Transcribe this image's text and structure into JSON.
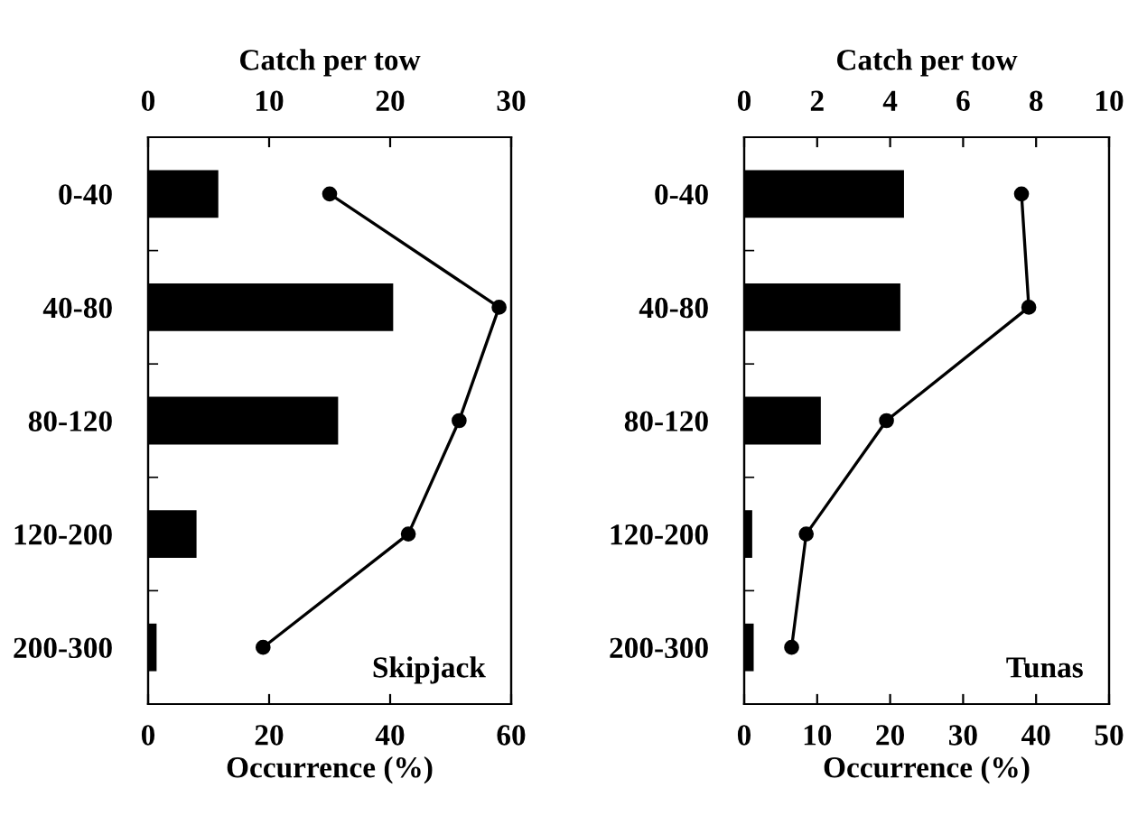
{
  "chart_data": [
    {
      "type": "bar",
      "orientation": "horizontal",
      "categories": [
        "0-40",
        "40-80",
        "80-120",
        "120-200",
        "200-300"
      ],
      "xlabel": "Occurrence (%)",
      "x2label": "Catch per tow",
      "xlim": [
        0,
        60
      ],
      "xticks": [
        0,
        20,
        40,
        60
      ],
      "x2lim": [
        0,
        30
      ],
      "x2ticks": [
        0,
        10,
        20,
        30
      ],
      "annotations": [
        "Skipjack"
      ],
      "marker": "circle",
      "line_style": "solid",
      "series": [
        {
          "color": "#000000",
          "values": [
            11.6,
            40.5,
            31.4,
            8.0,
            1.4
          ]
        },
        {
          "type": "line",
          "axis": "x2",
          "color": "#000000",
          "values": [
            15.0,
            29.0,
            25.7,
            21.5,
            9.5
          ]
        }
      ]
    },
    {
      "type": "bar",
      "orientation": "horizontal",
      "categories": [
        "0-40",
        "40-80",
        "80-120",
        "120-200",
        "200-300"
      ],
      "xlabel": "Occurrence (%)",
      "x2label": "Catch per tow",
      "xlim": [
        0,
        50
      ],
      "xticks": [
        0,
        10,
        20,
        30,
        40,
        50
      ],
      "x2lim": [
        0,
        10
      ],
      "x2ticks": [
        0,
        2,
        4,
        6,
        8,
        10
      ],
      "annotations": [
        "Tunas"
      ],
      "marker": "circle",
      "line_style": "solid",
      "series": [
        {
          "color": "#000000",
          "values": [
            21.9,
            21.4,
            10.5,
            1.1,
            1.3
          ]
        },
        {
          "type": "line",
          "axis": "x2",
          "color": "#000000",
          "values": [
            7.6,
            7.8,
            3.9,
            1.7,
            1.3
          ]
        }
      ]
    }
  ]
}
